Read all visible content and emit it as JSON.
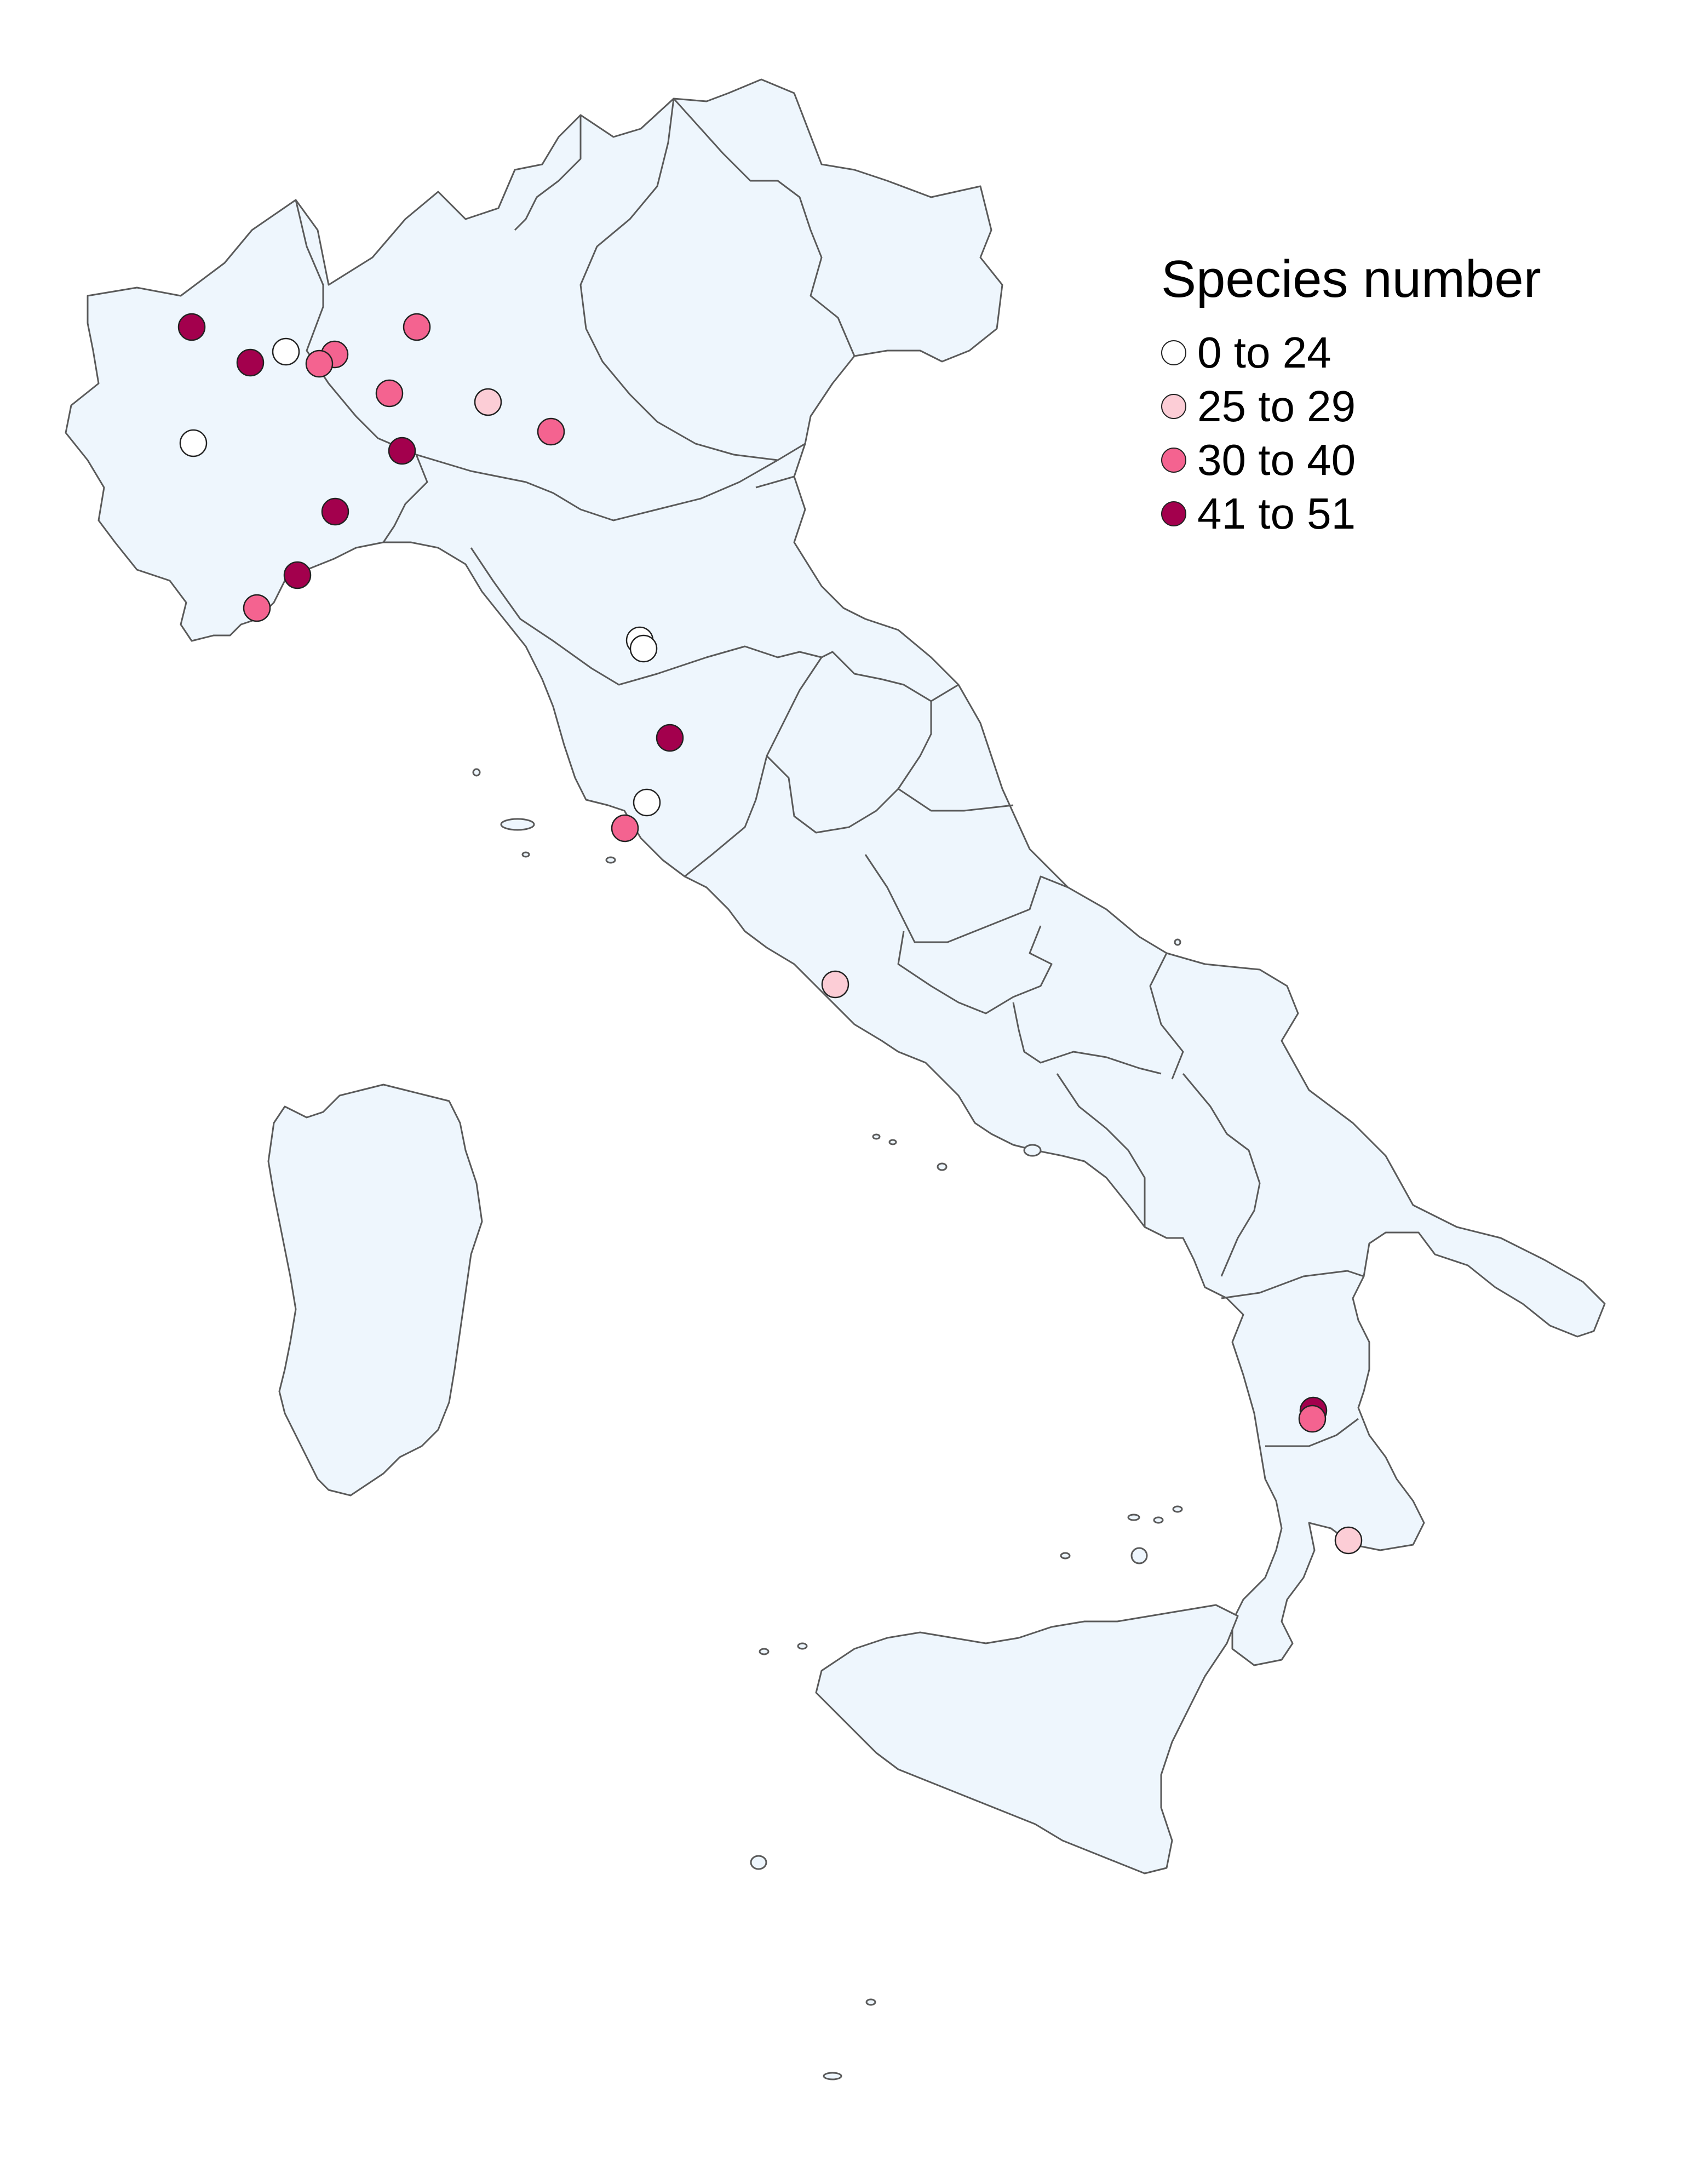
{
  "map": {
    "land_color": "#eef6fd",
    "border_color": "#5a5a5a"
  },
  "legend": {
    "title": "Species number",
    "classes": [
      {
        "label": "0 to 24",
        "color": "#ffffff"
      },
      {
        "label": "25 to 29",
        "color": "#fccdd6"
      },
      {
        "label": "30 to 40",
        "color": "#f46390"
      },
      {
        "label": "41 to 51",
        "color": "#a3004d"
      }
    ]
  },
  "sites": [
    {
      "cls": 3
    },
    {
      "cls": 3
    },
    {
      "cls": 0
    },
    {
      "cls": 2
    },
    {
      "cls": 2
    },
    {
      "cls": 2
    },
    {
      "cls": 0
    },
    {
      "cls": 2
    },
    {
      "cls": 1
    },
    {
      "cls": 2
    },
    {
      "cls": 3
    },
    {
      "cls": 3
    },
    {
      "cls": 3
    },
    {
      "cls": 2
    },
    {
      "cls": 0
    },
    {
      "cls": 0
    },
    {
      "cls": 3
    },
    {
      "cls": 0
    },
    {
      "cls": 2
    },
    {
      "cls": 1
    },
    {
      "cls": 3
    },
    {
      "cls": 2
    },
    {
      "cls": 1
    }
  ]
}
